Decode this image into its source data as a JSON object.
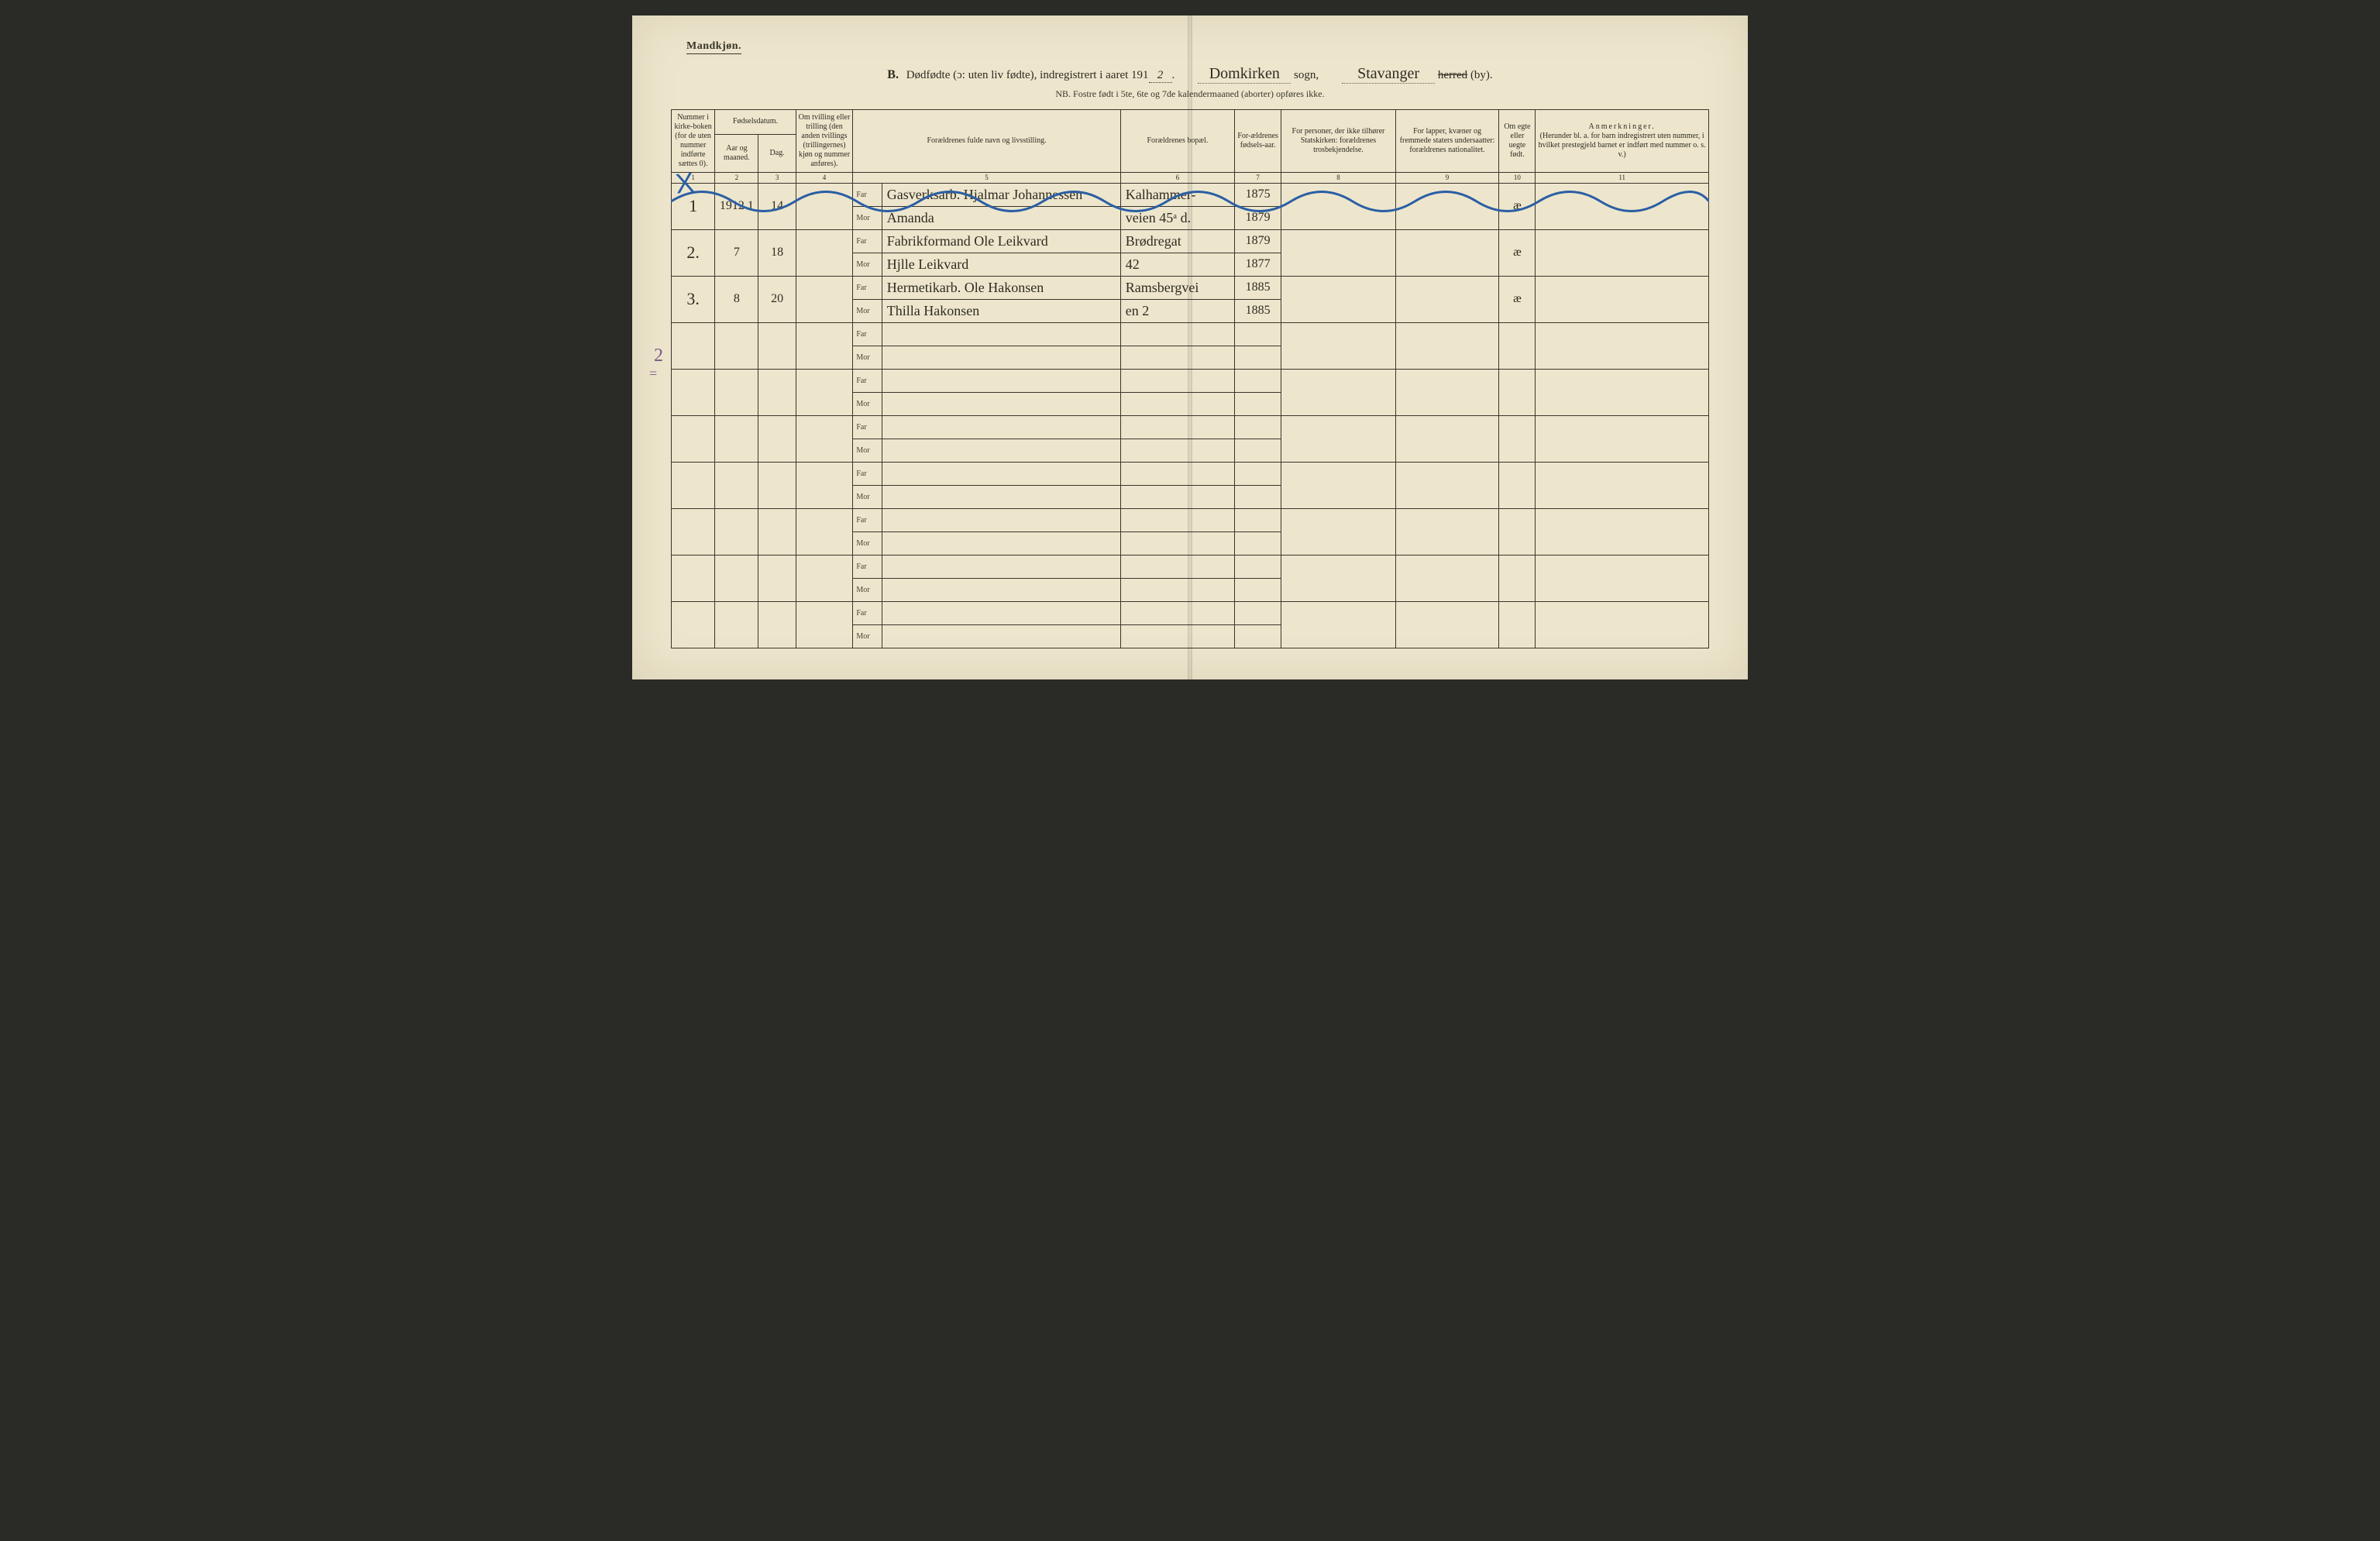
{
  "page": {
    "background_color": "#ede6cd",
    "ink_color": "#2f2b20",
    "faint_ink": "#4a4232",
    "rule_color": "#3a352a",
    "blue_pencil": "#2b5fa4",
    "purple_pencil": "#7a5a8a"
  },
  "header": {
    "gender_label": "Mandkjøn.",
    "section_letter": "B.",
    "title_text": "Dødfødte (ɔ: uten liv fødte), indregistrert i aaret 191",
    "year_suffix_handwritten": "2",
    "period": ".",
    "sogn_handwritten": "Domkirken",
    "sogn_label": "sogn,",
    "herred_handwritten": "Stavanger",
    "herred_struck": "herred",
    "herred_by": "(by).",
    "nb_line": "NB.  Fostre født i 5te, 6te og 7de kalendermaaned (aborter) opføres ikke."
  },
  "columns": {
    "c1": "Nummer i kirke-boken (for de uten nummer indførte sættes 0).",
    "c2_group": "Fødselsdatum.",
    "c2": "Aar og maaned.",
    "c3": "Dag.",
    "c4": "Om tvilling eller trilling (den anden tvillings (trillingernes) kjøn og nummer anføres).",
    "c5": "Forældrenes fulde navn og livsstilling.",
    "c6": "Forældrenes bopæl.",
    "c7": "For-ældrenes fødsels-aar.",
    "c8": "For personer, der ikke tilhører Statskirken: forældrenes trosbekjendelse.",
    "c9": "For lapper, kvæner og fremmede staters undersaatter: forældrenes nationalitet.",
    "c10": "Om egte eller uegte født.",
    "c11_title": "Anmerkninger.",
    "c11_sub": "(Herunder bl. a. for barn indregistrert uten nummer, i hvilket prestegjeld barnet er indført med nummer o. s. v.)"
  },
  "colnums": [
    "1",
    "2",
    "3",
    "4",
    "5",
    "6",
    "7",
    "8",
    "9",
    "10",
    "11"
  ],
  "far_label": "Far",
  "mor_label": "Mor",
  "rows": [
    {
      "no": "1",
      "aar": "1912  1",
      "dag": "14",
      "tvilling": "",
      "far_navn": "Gasverksarb. Hjalmar Johannessen",
      "mor_navn": "Amanda",
      "bopael_far": "Kalhammer-",
      "bopael_mor": "veien 45ᵃ d.",
      "far_aar": "1875",
      "mor_aar": "1879",
      "egte": "æ"
    },
    {
      "no": "2.",
      "aar": "7",
      "dag": "18",
      "tvilling": "",
      "far_navn": "Fabrikformand Ole Leikvard",
      "mor_navn": "Hjlle Leikvard",
      "bopael_far": "Brødregat",
      "bopael_mor": "42",
      "far_aar": "1879",
      "mor_aar": "1877",
      "egte": "æ"
    },
    {
      "no": "3.",
      "aar": "8",
      "dag": "20",
      "tvilling": "",
      "far_navn": "Hermetikarb. Ole Hakonsen",
      "mor_navn": "Thilla Hakonsen",
      "bopael_far": "Ramsbergvei",
      "bopael_mor": "en 2",
      "far_aar": "1885",
      "mor_aar": "1885",
      "egte": "æ"
    }
  ],
  "empty_row_count": 7,
  "margin": {
    "blue_x": "X",
    "purple_two": "2",
    "purple_equals": "="
  }
}
